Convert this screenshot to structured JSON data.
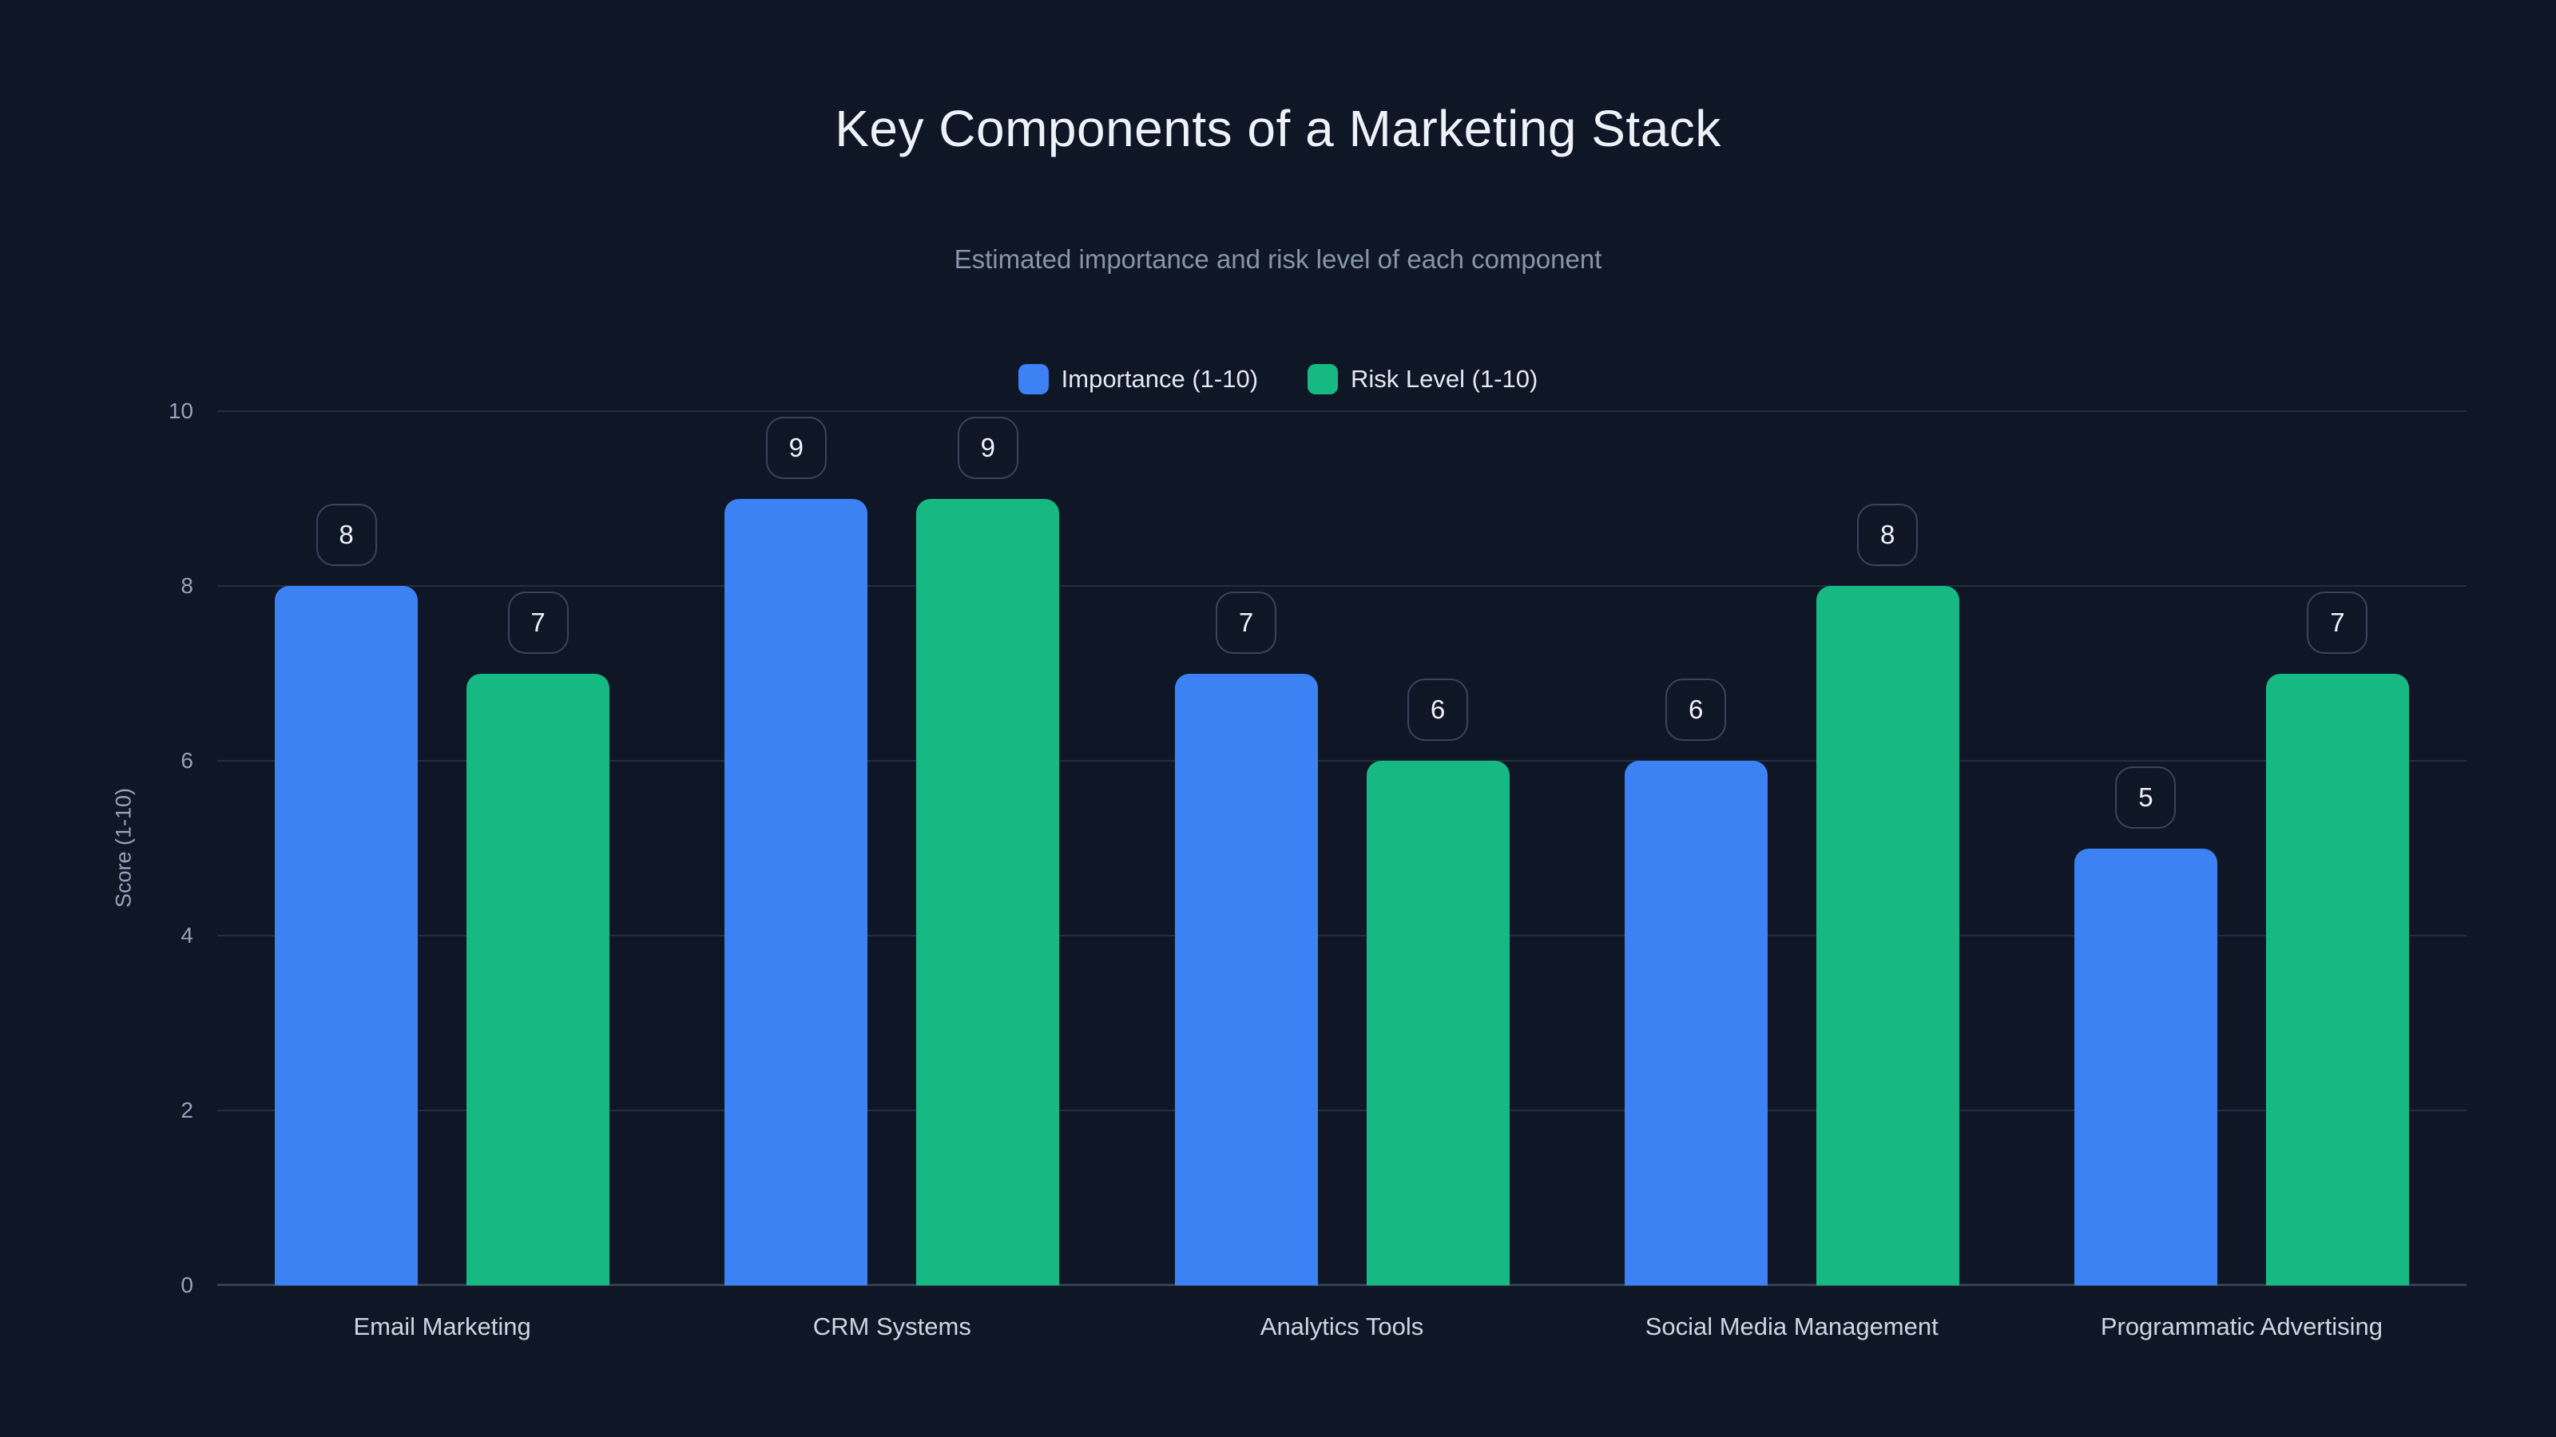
{
  "chart_data": {
    "type": "bar",
    "title": "Key Components of a Marketing Stack",
    "subtitle": "Estimated importance and risk level of each component",
    "ylabel": "Score (1-10)",
    "ylim": [
      0,
      10
    ],
    "yticks": [
      0,
      2,
      4,
      6,
      8,
      10
    ],
    "grid": true,
    "legend_position": "top",
    "value_labels": true,
    "categories": [
      "Email Marketing",
      "CRM Systems",
      "Analytics Tools",
      "Social Media Management",
      "Programmatic Advertising"
    ],
    "series": [
      {
        "name": "Importance (1-10)",
        "color": "#3d82f4",
        "values": [
          8,
          9,
          7,
          6,
          5
        ]
      },
      {
        "name": "Risk Level (1-10)",
        "color": "#16b981",
        "values": [
          7,
          9,
          6,
          8,
          7
        ]
      }
    ]
  },
  "theme": {
    "background": "#0f1727",
    "grid_color": "#232e41",
    "axis_line_color": "#333e50",
    "badge_border_color": "#39445a",
    "title_color": "#eef2f8",
    "subtitle_color": "#8795a9",
    "tick_color": "#97a3b5",
    "category_color": "#ccd5e0",
    "value_color": "#eef2f8"
  }
}
